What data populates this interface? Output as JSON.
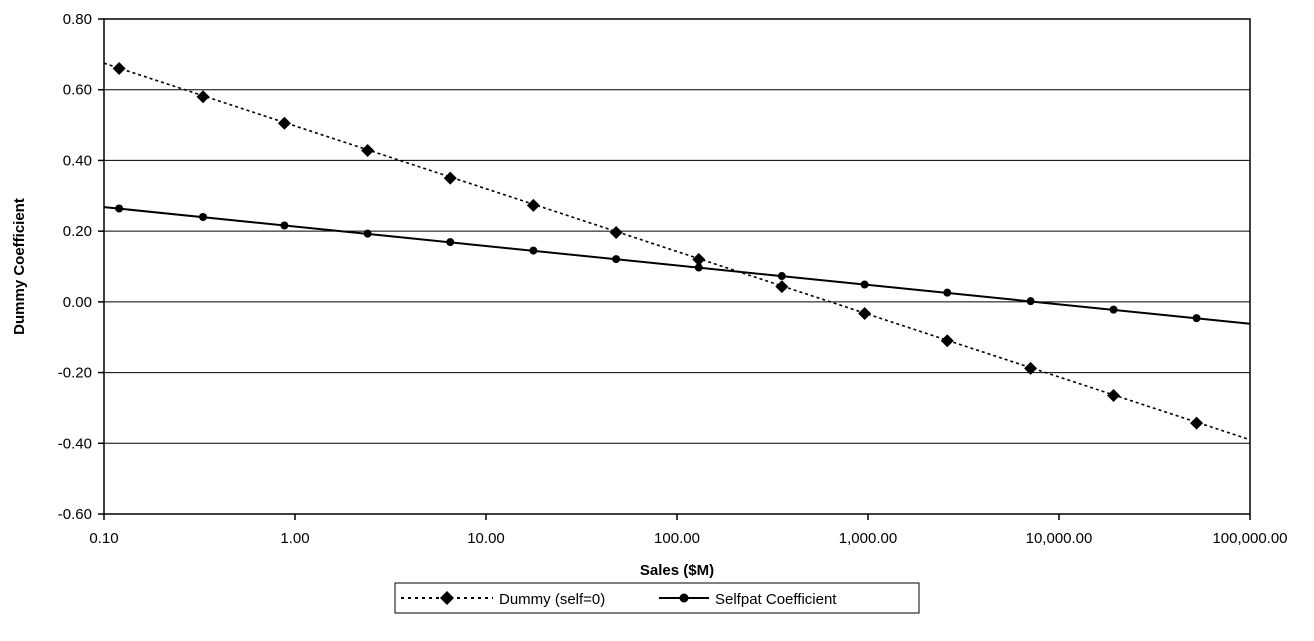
{
  "chart_data": {
    "type": "line",
    "title": "",
    "xlabel": "Sales ($M)",
    "ylabel": "Dummy Coefficient",
    "x_scale": "log",
    "xlim": [
      0.1,
      100000
    ],
    "ylim": [
      -0.6,
      0.8
    ],
    "grid": "horizontal",
    "legend_position": "bottom",
    "x_tick_labels": [
      "0.10",
      "1.00",
      "10.00",
      "100.00",
      "1,000.00",
      "10,000.00",
      "100,000.00"
    ],
    "y_tick_labels": [
      "0.80",
      "0.60",
      "0.40",
      "0.20",
      "0.00",
      "-0.20",
      "-0.40",
      "-0.60"
    ],
    "series": [
      {
        "name": "Dummy (self=0)",
        "marker": "diamond",
        "line_style": "dotted",
        "line_start": [
          0.1,
          0.675
        ],
        "line_end": [
          100000,
          -0.39
        ],
        "x": [
          0.12,
          0.33,
          0.88,
          2.4,
          6.5,
          17.7,
          48,
          130,
          354,
          960,
          2600,
          7100,
          19300,
          52500
        ],
        "y": [
          0.66,
          0.58,
          0.505,
          0.428,
          0.35,
          0.273,
          0.196,
          0.12,
          0.043,
          -0.033,
          -0.11,
          -0.188,
          -0.265,
          -0.343
        ]
      },
      {
        "name": "Selfpat Coefficient",
        "marker": "circle",
        "line_style": "solid",
        "line_start": [
          0.1,
          0.268
        ],
        "line_end": [
          100000,
          -0.062
        ],
        "x": [
          0.12,
          0.33,
          0.88,
          2.4,
          6.5,
          17.7,
          48,
          130,
          354,
          960,
          2600,
          7100,
          19300,
          52500
        ],
        "y": [
          0.264,
          0.24,
          0.216,
          0.193,
          0.169,
          0.145,
          0.121,
          0.097,
          0.073,
          0.049,
          0.026,
          0.002,
          -0.022,
          -0.046
        ]
      }
    ]
  }
}
